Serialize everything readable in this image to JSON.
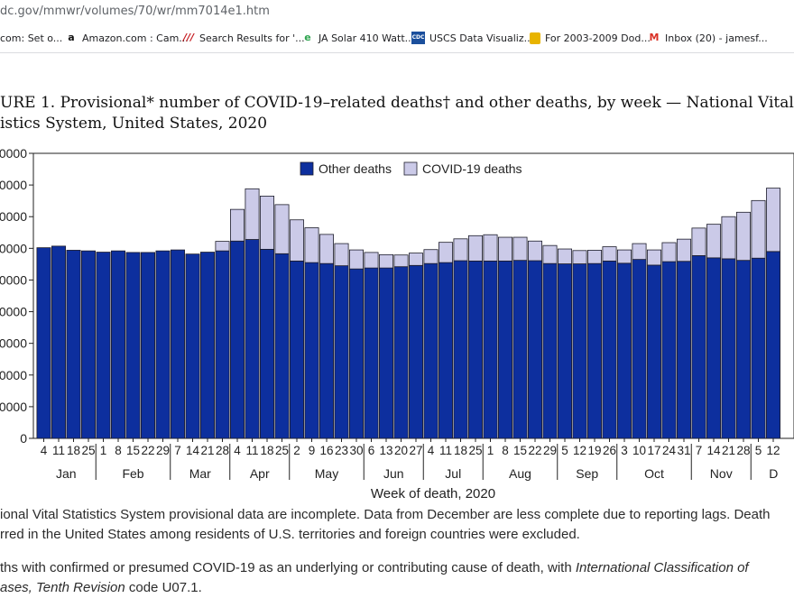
{
  "browser": {
    "url": "dc.gov/mmwr/volumes/70/wr/mm7014e1.htm",
    "bookmarks": [
      {
        "label": "com: Set o...",
        "icon": "bookmark-icon"
      },
      {
        "label": "Amazon.com : Cam...",
        "icon": "amazon-icon"
      },
      {
        "label": "Search Results for '...",
        "icon": "search-results-icon"
      },
      {
        "label": "JA Solar 410 Watt...",
        "icon": "edge-icon"
      },
      {
        "label": "USCS Data Visualiz...",
        "icon": "cdc-icon"
      },
      {
        "label": "For 2003-2009 Dod...",
        "icon": "bag-icon"
      },
      {
        "label": "Inbox (20) - jamesf...",
        "icon": "gmail-icon"
      }
    ]
  },
  "figure": {
    "title_line1": "URE 1. Provisional* number of COVID-19–related deaths† and other deaths, by week — National Vital",
    "title_line2": "istics System, United States, 2020"
  },
  "chart_data": {
    "type": "bar",
    "stacked": true,
    "xlabel": "Week of death, 2020",
    "ylabel": "",
    "ylim": [
      0,
      90000
    ],
    "y_ticks": [
      0,
      10000,
      20000,
      30000,
      40000,
      50000,
      60000,
      70000,
      80000,
      90000
    ],
    "y_tick_labels": [
      "0",
      "0000",
      "0000",
      "0000",
      "0000",
      "0000",
      "0000",
      "0000",
      "0000",
      "0000"
    ],
    "legend_position": "top-center",
    "categories": [
      "4",
      "11",
      "18",
      "25",
      "1",
      "8",
      "15",
      "22",
      "29",
      "7",
      "14",
      "21",
      "28",
      "4",
      "11",
      "18",
      "25",
      "2",
      "9",
      "16",
      "23",
      "30",
      "6",
      "13",
      "20",
      "27",
      "4",
      "11",
      "18",
      "25",
      "1",
      "8",
      "15",
      "22",
      "29",
      "5",
      "12",
      "19",
      "26",
      "3",
      "10",
      "17",
      "24",
      "31",
      "7",
      "14",
      "21",
      "28",
      "5",
      "12"
    ],
    "months": [
      {
        "label": "Jan",
        "start": 0,
        "end": 3
      },
      {
        "label": "Feb",
        "start": 4,
        "end": 8
      },
      {
        "label": "Mar",
        "start": 9,
        "end": 12
      },
      {
        "label": "Apr",
        "start": 13,
        "end": 16
      },
      {
        "label": "May",
        "start": 17,
        "end": 21
      },
      {
        "label": "Jun",
        "start": 22,
        "end": 25
      },
      {
        "label": "Jul",
        "start": 26,
        "end": 29
      },
      {
        "label": "Aug",
        "start": 30,
        "end": 34
      },
      {
        "label": "Sep",
        "start": 35,
        "end": 38
      },
      {
        "label": "Oct",
        "start": 39,
        "end": 43
      },
      {
        "label": "Nov",
        "start": 44,
        "end": 47
      },
      {
        "label": "D",
        "start": 48,
        "end": 49
      }
    ],
    "series": [
      {
        "name": "Other deaths",
        "color": "#0d2f9e",
        "values": [
          60200,
          60700,
          59400,
          59200,
          58800,
          59200,
          58700,
          58700,
          59200,
          59500,
          58200,
          58800,
          59200,
          62300,
          62800,
          59700,
          58300,
          56000,
          55500,
          55200,
          54500,
          53500,
          53800,
          53800,
          54200,
          54600,
          55200,
          55500,
          56100,
          56000,
          56000,
          56000,
          56200,
          56100,
          55200,
          55100,
          55100,
          55200,
          56000,
          55300,
          56500,
          54700,
          55800,
          55900,
          57700,
          57000,
          56700,
          56200,
          56900,
          59000
        ]
      },
      {
        "name": "COVID-19 deaths",
        "color": "#cbcae8",
        "values": [
          0,
          0,
          0,
          0,
          0,
          0,
          0,
          0,
          0,
          0,
          0,
          0,
          3000,
          10000,
          16000,
          16800,
          15500,
          13000,
          11000,
          9200,
          7000,
          6000,
          4900,
          4200,
          3700,
          3900,
          4400,
          6400,
          6900,
          8000,
          8300,
          7500,
          7300,
          6200,
          5700,
          4700,
          4200,
          4200,
          4500,
          4200,
          5000,
          4800,
          6000,
          7000,
          8700,
          10600,
          13300,
          15200,
          18200,
          20000
        ]
      }
    ]
  },
  "footnotes": {
    "line1": "ional Vital Statistics System provisional data are incomplete. Data from December are less complete due to reporting lags. Death",
    "line2": "rred in the United States among residents of U.S. territories and foreign countries were excluded.",
    "line3_pre": "ths with confirmed or presumed COVID-19 as an underlying or contributing cause of death, with ",
    "line3_italic": "International Classification of",
    "line4_italic": "ases, Tenth Revision",
    "line4_post": " code U07.1."
  }
}
